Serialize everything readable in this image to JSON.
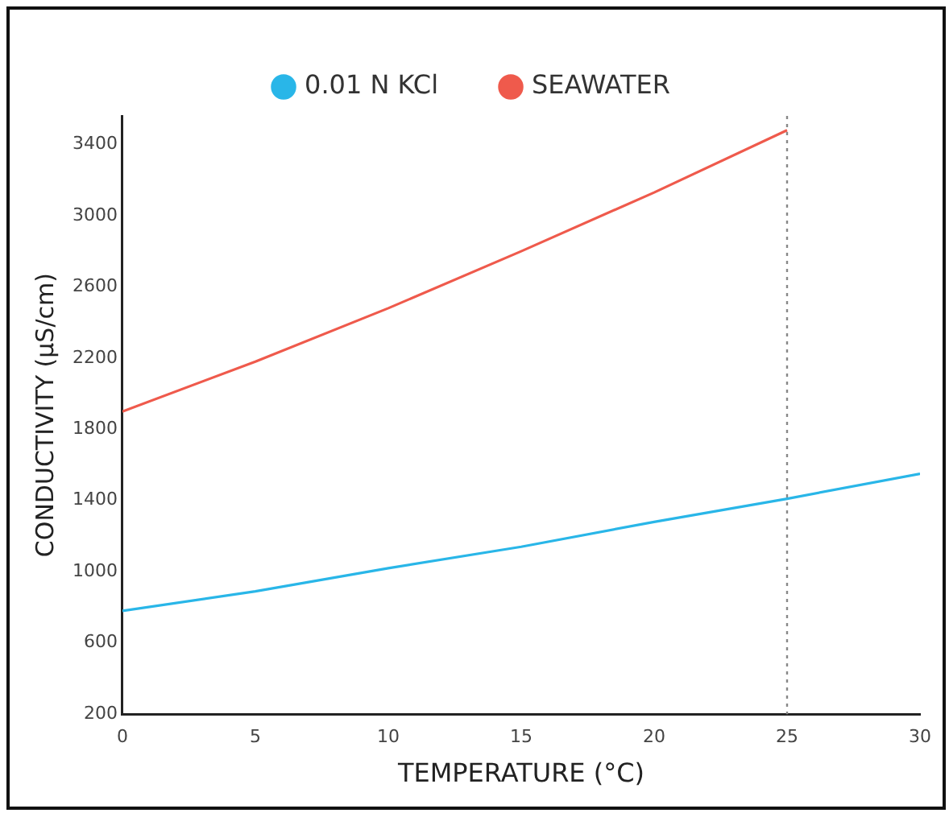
{
  "chart_data": {
    "type": "line",
    "xlabel": "TEMPERATURE (°C)",
    "ylabel": "CONDUCTIVITY (µS/cm)",
    "series": [
      {
        "name": "0.01 N KCl",
        "color": "#29b6e8",
        "x": [
          0,
          5,
          10,
          15,
          20,
          25,
          30
        ],
        "values": [
          780,
          890,
          1020,
          1140,
          1280,
          1410,
          1550
        ]
      },
      {
        "name": "SEAWATER",
        "color": "#ef5a4c",
        "x": [
          0,
          5,
          10,
          15,
          20,
          25
        ],
        "values": [
          1900,
          2180,
          2480,
          2800,
          3130,
          3480
        ]
      }
    ],
    "xlim": [
      0,
      30
    ],
    "xticks": [
      0,
      5,
      10,
      15,
      20,
      25,
      30
    ],
    "ylim": [
      200,
      3560
    ],
    "yticks": [
      200,
      600,
      1000,
      1400,
      1800,
      2200,
      2600,
      3000,
      3400
    ],
    "ref_lines": [
      {
        "axis": "x",
        "value": 25,
        "color": "#888888",
        "line_style": "dotted"
      }
    ],
    "grid": false,
    "legend": "top",
    "marker": "none",
    "line_style": "solid"
  }
}
